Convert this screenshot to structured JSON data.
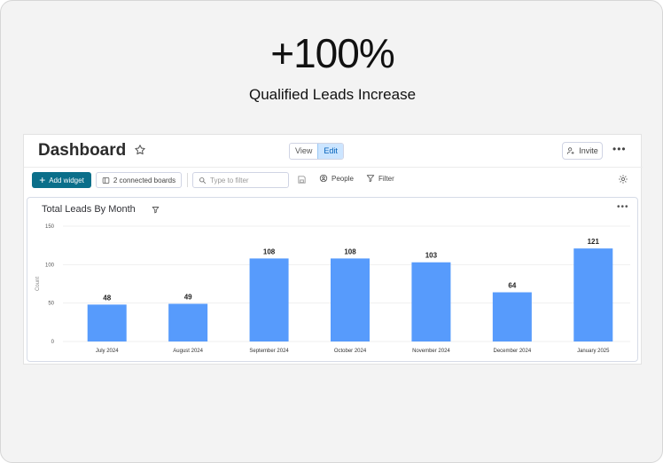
{
  "hero": {
    "headline": "+100%",
    "subheadline": "Qualified Leads Increase"
  },
  "dashboard": {
    "title": "Dashboard",
    "view_label": "View",
    "edit_label": "Edit",
    "invite_label": "Invite",
    "more_label": "•••"
  },
  "toolbar": {
    "add_widget_label": "Add widget",
    "boards_label": "2 connected boards",
    "filter_placeholder": "Type to filter",
    "people_label": "People",
    "filter_label": "Filter"
  },
  "widget": {
    "title": "Total Leads By Month",
    "more_label": "•••"
  },
  "colors": {
    "bar": "#579bfc",
    "primary_button": "#0b6f8a"
  },
  "chart_data": {
    "type": "bar",
    "categories": [
      "July 2024",
      "August 2024",
      "September 2024",
      "October 2024",
      "November 2024",
      "December 2024",
      "January 2025"
    ],
    "values": [
      48,
      49,
      108,
      108,
      103,
      64,
      121
    ],
    "ylabel": "Count",
    "ylim": [
      0,
      150
    ],
    "yticks": [
      0,
      50,
      100,
      150
    ],
    "grid": true
  }
}
